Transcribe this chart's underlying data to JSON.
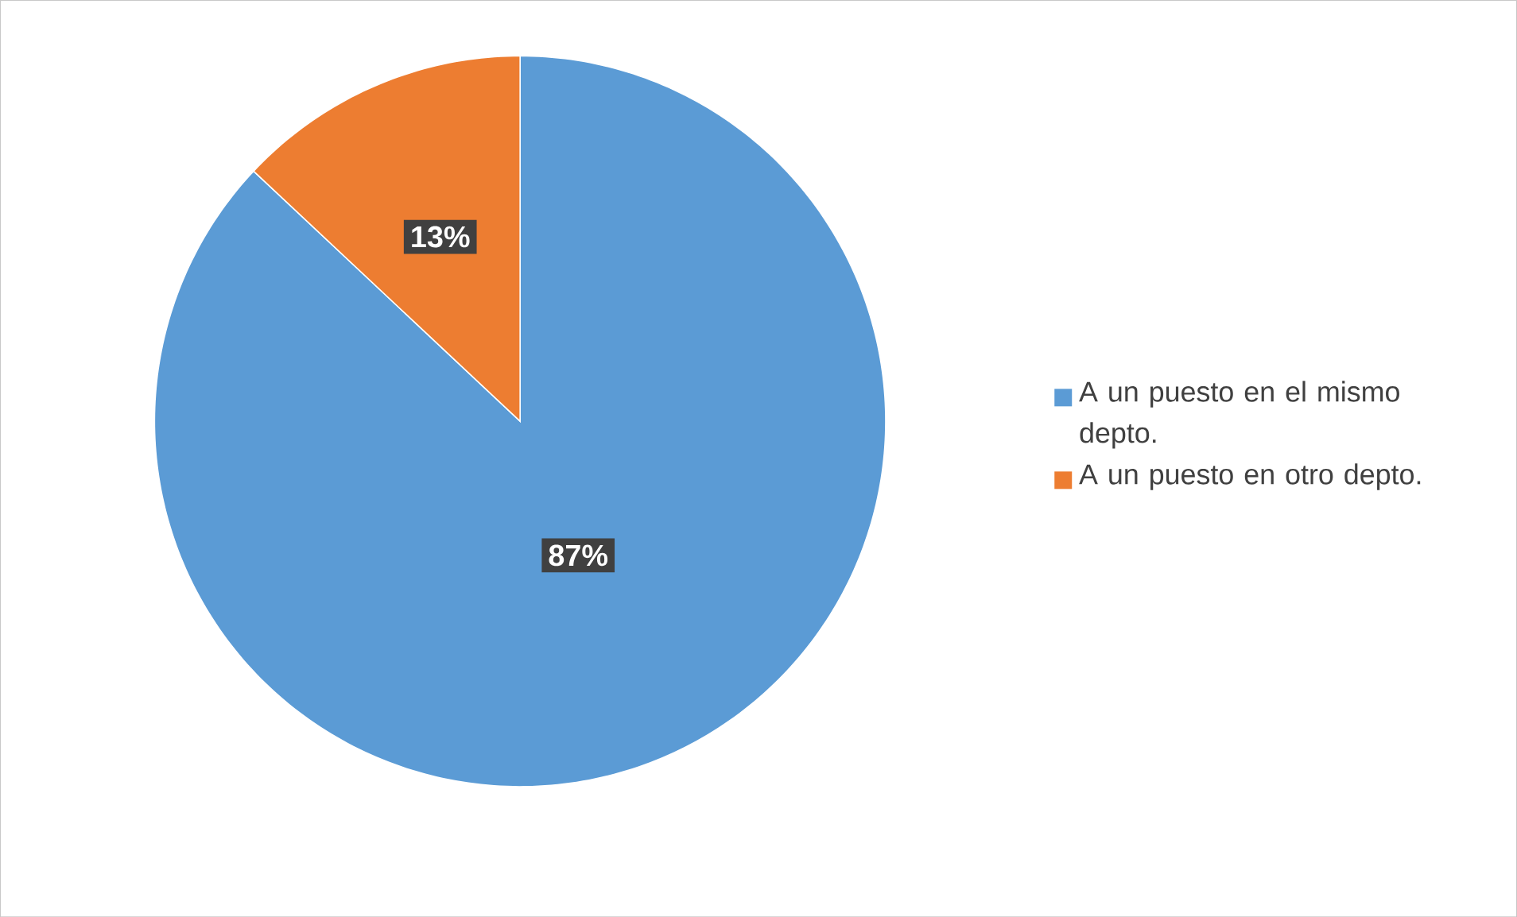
{
  "chart_data": {
    "type": "pie",
    "categories": [
      "A un puesto en el mismo depto.",
      "A un puesto en otro depto."
    ],
    "values": [
      87,
      13
    ],
    "colors": [
      "#5b9bd5",
      "#ed7d31"
    ],
    "value_labels": [
      "87%",
      "13%"
    ],
    "legend": "right"
  }
}
